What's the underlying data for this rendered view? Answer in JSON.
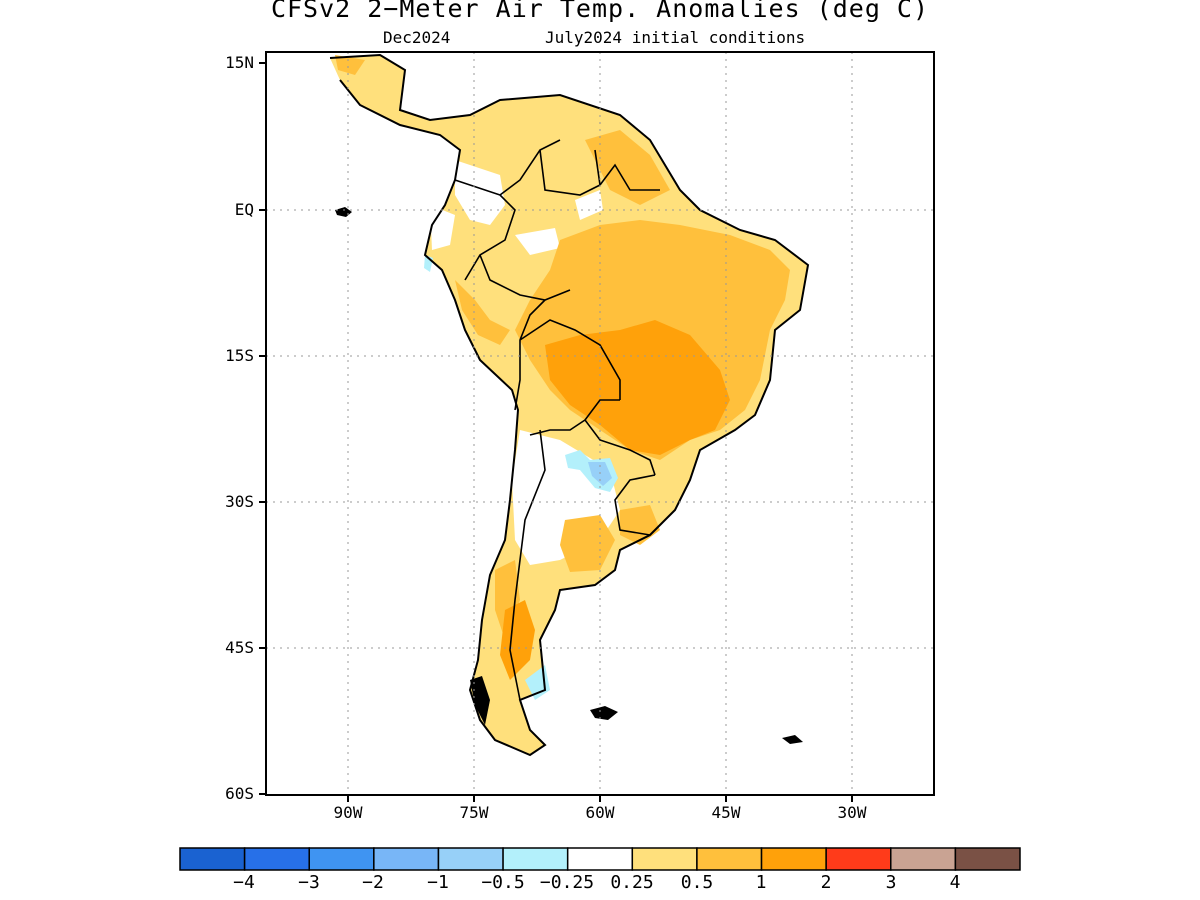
{
  "title": "CFSv2 2−Meter Air Temp. Anomalies (deg C)",
  "subtitle_left": "Dec2024",
  "subtitle_right": "July2024 initial conditions",
  "map": {
    "lat_labels": [
      "15N",
      "EQ",
      "15S",
      "30S",
      "45S",
      "60S"
    ],
    "lon_labels": [
      "90W",
      "75W",
      "60W",
      "45W",
      "30W"
    ],
    "gridlines": "dotted",
    "coastline_color": "#000000"
  },
  "colorbar": {
    "colors": [
      "#1a62d1",
      "#2770e8",
      "#3f94f2",
      "#78b6f7",
      "#97d0f8",
      "#b3f0fb",
      "#ffffff",
      "#ffe07c",
      "#ffc03c",
      "#ffa10a",
      "#ff3b1a",
      "#c9a393",
      "#7a5145"
    ],
    "labels": [
      "−4",
      "−3",
      "−2",
      "−1",
      "−0.5",
      "−0.25",
      "0.25",
      "0.5",
      "1",
      "2",
      "3",
      "4"
    ]
  }
}
